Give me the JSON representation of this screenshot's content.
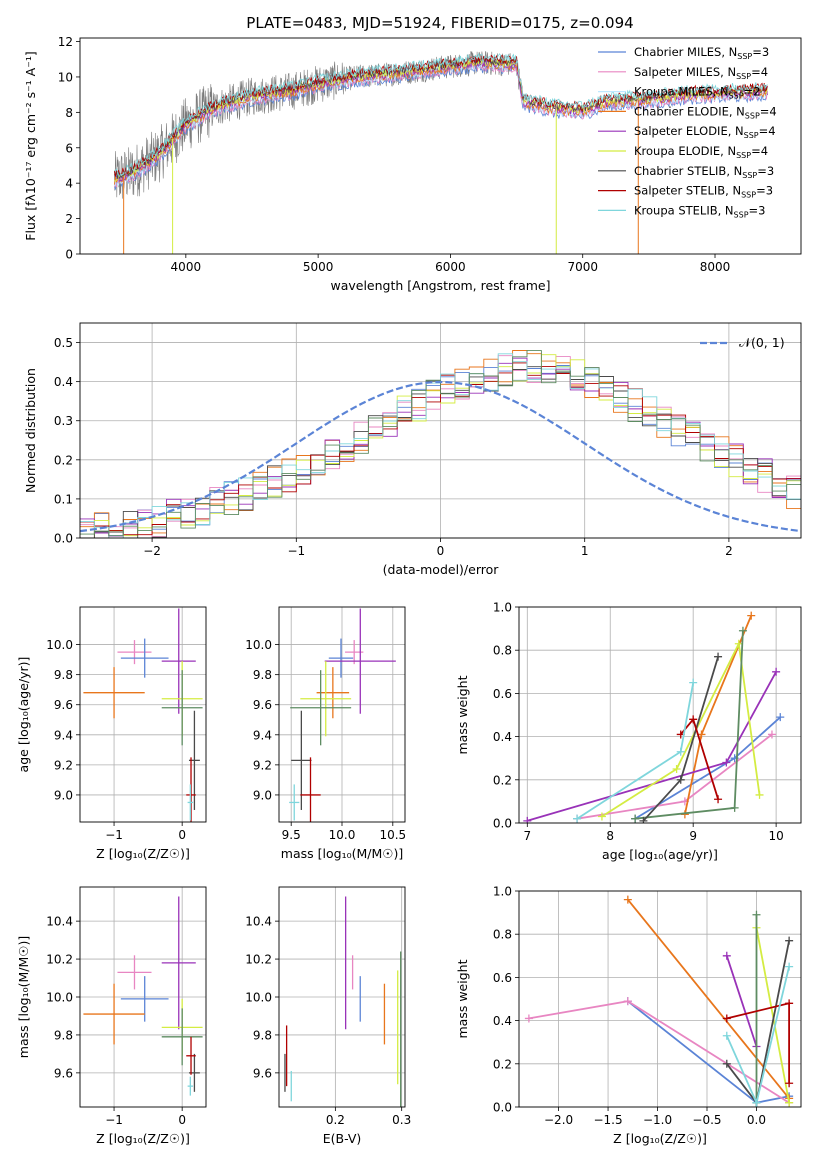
{
  "figure_title": "PLATE=0483, MJD=51924, FIBERID=0175, z=0.094",
  "colors": {
    "chabrier_miles": "#5b84d6",
    "salpeter_miles": "#e886c2",
    "kroupa_miles": "#bfe8ff",
    "chabrier_elodie": "#e8761c",
    "salpeter_elodie": "#9932b8",
    "kroupa_elodie": "#d4ec42",
    "chabrier_stelib": "#4a4a4a",
    "salpeter_stelib": "#b00000",
    "kroupa_stelib": "#7fd6dc",
    "extra_green": "#5e8c62",
    "normal_curve": "#5b84d6"
  },
  "chart_data": [
    {
      "id": "spectrum",
      "type": "line",
      "title": "PLATE=0483, MJD=51924, FIBERID=0175, z=0.094",
      "xlabel": "wavelength [Angstrom, rest frame]",
      "ylabel": "Flux [fλ10⁻¹⁷ erg cm⁻² s⁻¹ A⁻¹]",
      "xlim": [
        3200,
        8650
      ],
      "ylim": [
        0,
        12.2
      ],
      "xticks": [
        4000,
        5000,
        6000,
        7000,
        8000
      ],
      "yticks": [
        0,
        2,
        4,
        6,
        8,
        10,
        12
      ],
      "grid": false,
      "legend_position": "right",
      "legend": [
        {
          "label": "Chabrier MILES, N",
          "sub": "SSP",
          "suffix": "=3",
          "color": "#5b84d6"
        },
        {
          "label": "Salpeter MILES, N",
          "sub": "SSP",
          "suffix": "=4",
          "color": "#e886c2"
        },
        {
          "label": "Kroupa MILES, N",
          "sub": "SSP",
          "suffix": "=2",
          "color": "#bfe8ff"
        },
        {
          "label": "Chabrier ELODIE, N",
          "sub": "SSP",
          "suffix": "=4",
          "color": "#e8761c"
        },
        {
          "label": "Salpeter ELODIE, N",
          "sub": "SSP",
          "suffix": "=4",
          "color": "#9932b8"
        },
        {
          "label": "Kroupa ELODIE, N",
          "sub": "SSP",
          "suffix": "=4",
          "color": "#d4ec42"
        },
        {
          "label": "Chabrier STELIB, N",
          "sub": "SSP",
          "suffix": "=3",
          "color": "#4a4a4a"
        },
        {
          "label": "Salpeter STELIB, N",
          "sub": "SSP",
          "suffix": "=3",
          "color": "#b00000"
        },
        {
          "label": "Kroupa STELIB, N",
          "sub": "SSP",
          "suffix": "=3",
          "color": "#7fd6dc"
        }
      ],
      "continuum": {
        "x": [
          3460,
          3600,
          3800,
          4000,
          4200,
          4500,
          4800,
          5000,
          5300,
          5600,
          5900,
          6200,
          6500,
          6550,
          6800,
          7000,
          7200,
          7500,
          7800,
          8100,
          8400
        ],
        "y": [
          4.2,
          4.6,
          5.6,
          7.3,
          8.2,
          8.9,
          9.2,
          9.6,
          10.0,
          10.2,
          10.5,
          10.8,
          10.7,
          8.6,
          8.2,
          8.1,
          8.6,
          8.7,
          9.0,
          9.1,
          9.2
        ]
      }
    },
    {
      "id": "residuals",
      "type": "histogram",
      "xlabel": "(data-model)/error",
      "ylabel": "Normed distribution",
      "xlim": [
        -2.5,
        2.5
      ],
      "ylim": [
        0,
        0.55
      ],
      "xticks": [
        -2,
        -1,
        0,
        1,
        2
      ],
      "yticks": [
        0.0,
        0.1,
        0.2,
        0.3,
        0.4,
        0.5
      ],
      "grid": true,
      "legend_position": "top-right",
      "legend_label": "𝒩(0, 1)",
      "bin_width": 0.1,
      "bin_start": -2.5,
      "envelope": [
        0.02,
        0.025,
        0.03,
        0.035,
        0.04,
        0.045,
        0.055,
        0.065,
        0.075,
        0.09,
        0.1,
        0.11,
        0.13,
        0.14,
        0.16,
        0.18,
        0.2,
        0.22,
        0.24,
        0.26,
        0.28,
        0.3,
        0.32,
        0.34,
        0.36,
        0.38,
        0.4,
        0.41,
        0.42,
        0.43,
        0.44,
        0.44,
        0.44,
        0.43,
        0.42,
        0.4,
        0.38,
        0.36,
        0.34,
        0.32,
        0.3,
        0.28,
        0.26,
        0.24,
        0.22,
        0.2,
        0.18,
        0.16,
        0.14,
        0.12
      ]
    },
    {
      "id": "age_vs_z",
      "type": "errorbar",
      "xlabel": "Z [log₁₀(Z/Z☉)]",
      "ylabel": "age  [log₁₀(age/yr)]",
      "xlim": [
        -1.5,
        0.35
      ],
      "ylim": [
        8.82,
        10.25
      ],
      "xticks": [
        -1,
        0
      ],
      "yticks": [
        9.0,
        9.2,
        9.4,
        9.6,
        9.8,
        10.0
      ],
      "grid": true,
      "points": [
        {
          "x": -0.7,
          "y": 9.95,
          "xerr": 0.25,
          "yerr": 0.08,
          "color": "#e886c2"
        },
        {
          "x": -0.55,
          "y": 9.91,
          "xerr": 0.35,
          "yerr": 0.13,
          "color": "#5b84d6"
        },
        {
          "x": -1.0,
          "y": 9.68,
          "xerr": 0.45,
          "yerr": 0.17,
          "color": "#e8761c"
        },
        {
          "x": -0.05,
          "y": 9.89,
          "xerr": 0.25,
          "yerr": 0.35,
          "color": "#9932b8"
        },
        {
          "x": 0.0,
          "y": 9.64,
          "xerr": 0.3,
          "yerr": 0.25,
          "color": "#d4ec42"
        },
        {
          "x": 0.0,
          "y": 9.58,
          "xerr": 0.3,
          "yerr": 0.25,
          "color": "#5e8c62"
        },
        {
          "x": 0.18,
          "y": 9.23,
          "xerr": 0.08,
          "yerr": 0.33,
          "color": "#4a4a4a"
        },
        {
          "x": 0.13,
          "y": 9.0,
          "xerr": 0.07,
          "yerr": 0.25,
          "color": "#b00000"
        },
        {
          "x": 0.12,
          "y": 8.95,
          "xerr": 0.04,
          "yerr": 0.12,
          "color": "#7fd6dc"
        }
      ]
    },
    {
      "id": "age_vs_mass",
      "type": "errorbar",
      "xlabel": "mass [log₁₀(M/M☉)]",
      "ylabel": "",
      "xlim": [
        9.38,
        10.62
      ],
      "ylim": [
        8.82,
        10.25
      ],
      "xticks": [
        9.5,
        10.0,
        10.5
      ],
      "yticks": [
        9.0,
        9.2,
        9.4,
        9.6,
        9.8,
        10.0
      ],
      "grid": true,
      "points": [
        {
          "x": 10.12,
          "y": 9.95,
          "xerr": 0.09,
          "yerr": 0.08,
          "color": "#e886c2"
        },
        {
          "x": 9.99,
          "y": 9.91,
          "xerr": 0.12,
          "yerr": 0.13,
          "color": "#5b84d6"
        },
        {
          "x": 9.91,
          "y": 9.68,
          "xerr": 0.16,
          "yerr": 0.17,
          "color": "#e8761c"
        },
        {
          "x": 10.18,
          "y": 9.89,
          "xerr": 0.35,
          "yerr": 0.35,
          "color": "#9932b8"
        },
        {
          "x": 9.84,
          "y": 9.64,
          "xerr": 0.25,
          "yerr": 0.25,
          "color": "#d4ec42"
        },
        {
          "x": 9.79,
          "y": 9.58,
          "xerr": 0.3,
          "yerr": 0.25,
          "color": "#5e8c62"
        },
        {
          "x": 9.6,
          "y": 9.23,
          "xerr": 0.1,
          "yerr": 0.33,
          "color": "#4a4a4a"
        },
        {
          "x": 9.69,
          "y": 9.0,
          "xerr": 0.1,
          "yerr": 0.25,
          "color": "#b00000"
        },
        {
          "x": 9.53,
          "y": 8.95,
          "xerr": 0.05,
          "yerr": 0.12,
          "color": "#7fd6dc"
        }
      ]
    },
    {
      "id": "weight_vs_age",
      "type": "line",
      "xlabel": "age  [log₁₀(age/yr)]",
      "ylabel": "mass weight",
      "xlim": [
        6.9,
        10.3
      ],
      "ylim": [
        0,
        1.0
      ],
      "xticks": [
        7,
        8,
        9,
        10
      ],
      "yticks": [
        0.0,
        0.2,
        0.4,
        0.6,
        0.8,
        1.0
      ],
      "grid": true,
      "series": [
        {
          "color": "#5b84d6",
          "x": [
            8.3,
            9.5,
            10.05
          ],
          "y": [
            0.02,
            0.3,
            0.49
          ]
        },
        {
          "color": "#e886c2",
          "x": [
            7.6,
            8.9,
            9.95
          ],
          "y": [
            0.02,
            0.1,
            0.41
          ]
        },
        {
          "color": "#e8761c",
          "x": [
            8.9,
            9.1,
            9.7
          ],
          "y": [
            0.04,
            0.41,
            0.96
          ]
        },
        {
          "color": "#9932b8",
          "x": [
            7.0,
            9.4,
            10.0
          ],
          "y": [
            0.01,
            0.28,
            0.7
          ]
        },
        {
          "color": "#d4ec42",
          "x": [
            7.9,
            8.8,
            9.55,
            9.8
          ],
          "y": [
            0.03,
            0.25,
            0.83,
            0.13
          ]
        },
        {
          "color": "#5e8c62",
          "x": [
            8.3,
            9.5,
            9.6
          ],
          "y": [
            0.02,
            0.07,
            0.89
          ]
        },
        {
          "color": "#4a4a4a",
          "x": [
            8.4,
            8.85,
            9.3
          ],
          "y": [
            0.01,
            0.2,
            0.77
          ]
        },
        {
          "color": "#b00000",
          "x": [
            8.85,
            9.0,
            9.3
          ],
          "y": [
            0.41,
            0.48,
            0.11
          ]
        },
        {
          "color": "#7fd6dc",
          "x": [
            7.6,
            8.85,
            9.0
          ],
          "y": [
            0.02,
            0.33,
            0.65
          ]
        }
      ]
    },
    {
      "id": "mass_vs_z",
      "type": "errorbar",
      "xlabel": "Z [log₁₀(Z/Z☉)]",
      "ylabel": "mass [log₁₀(M/M☉)]",
      "xlim": [
        -1.5,
        0.35
      ],
      "ylim": [
        9.42,
        10.58
      ],
      "xticks": [
        -1,
        0
      ],
      "yticks": [
        9.6,
        9.8,
        10.0,
        10.2,
        10.4
      ],
      "grid": true,
      "points": [
        {
          "x": -0.7,
          "y": 10.13,
          "xerr": 0.25,
          "yerr": 0.09,
          "color": "#e886c2"
        },
        {
          "x": -0.55,
          "y": 9.99,
          "xerr": 0.35,
          "yerr": 0.12,
          "color": "#5b84d6"
        },
        {
          "x": -1.0,
          "y": 9.91,
          "xerr": 0.45,
          "yerr": 0.16,
          "color": "#e8761c"
        },
        {
          "x": -0.05,
          "y": 10.18,
          "xerr": 0.25,
          "yerr": 0.35,
          "color": "#9932b8"
        },
        {
          "x": 0.0,
          "y": 9.84,
          "xerr": 0.3,
          "yerr": 0.15,
          "color": "#d4ec42"
        },
        {
          "x": 0.0,
          "y": 9.79,
          "xerr": 0.3,
          "yerr": 0.15,
          "color": "#5e8c62"
        },
        {
          "x": 0.18,
          "y": 9.6,
          "xerr": 0.08,
          "yerr": 0.1,
          "color": "#4a4a4a"
        },
        {
          "x": 0.13,
          "y": 9.69,
          "xerr": 0.07,
          "yerr": 0.1,
          "color": "#b00000"
        },
        {
          "x": 0.12,
          "y": 9.53,
          "xerr": 0.04,
          "yerr": 0.05,
          "color": "#7fd6dc"
        }
      ]
    },
    {
      "id": "mass_vs_ebv",
      "type": "errorbar",
      "xlabel": "E(B-V)",
      "ylabel": "",
      "xlim": [
        0.115,
        0.305
      ],
      "ylim": [
        9.42,
        10.58
      ],
      "xticks": [
        0.2,
        0.3
      ],
      "yticks": [
        9.6,
        9.8,
        10.0,
        10.2,
        10.4
      ],
      "grid": true,
      "points": [
        {
          "x": 0.2155,
          "y": 10.18,
          "xerr": 0,
          "yerr": 0.35,
          "color": "#9932b8"
        },
        {
          "x": 0.226,
          "y": 10.13,
          "xerr": 0,
          "yerr": 0.09,
          "color": "#e886c2"
        },
        {
          "x": 0.2375,
          "y": 9.99,
          "xerr": 0,
          "yerr": 0.12,
          "color": "#5b84d6"
        },
        {
          "x": 0.274,
          "y": 9.91,
          "xerr": 0,
          "yerr": 0.16,
          "color": "#e8761c"
        },
        {
          "x": 0.294,
          "y": 9.84,
          "xerr": 0,
          "yerr": 0.3,
          "color": "#d4ec42"
        },
        {
          "x": 0.2985,
          "y": 9.79,
          "xerr": 0,
          "yerr": 0.45,
          "color": "#5e8c62"
        },
        {
          "x": 0.1265,
          "y": 9.69,
          "xerr": 0,
          "yerr": 0.16,
          "color": "#b00000"
        },
        {
          "x": 0.124,
          "y": 9.6,
          "xerr": 0,
          "yerr": 0.1,
          "color": "#4a4a4a"
        },
        {
          "x": 0.1335,
          "y": 9.53,
          "xerr": 0,
          "yerr": 0.08,
          "color": "#7fd6dc"
        }
      ]
    },
    {
      "id": "weight_vs_z",
      "type": "line",
      "xlabel": "Z [log₁₀(Z/Z☉)]",
      "ylabel": "mass weight",
      "xlim": [
        -2.4,
        0.45
      ],
      "ylim": [
        0,
        1.0
      ],
      "xticks": [
        -2.0,
        -1.5,
        -1.0,
        -0.5,
        0.0
      ],
      "yticks": [
        0.0,
        0.2,
        0.4,
        0.6,
        0.8,
        1.0
      ],
      "grid": true,
      "series": [
        {
          "color": "#5b84d6",
          "x": [
            -1.3,
            0.0,
            0.33
          ],
          "y": [
            0.49,
            0.02,
            0.05
          ]
        },
        {
          "color": "#e886c2",
          "x": [
            -2.3,
            -1.3,
            0.33
          ],
          "y": [
            0.41,
            0.49,
            0.02
          ]
        },
        {
          "color": "#e8761c",
          "x": [
            -1.3,
            0.33
          ],
          "y": [
            0.96,
            0.04
          ]
        },
        {
          "color": "#9932b8",
          "x": [
            -0.3,
            0.0
          ],
          "y": [
            0.7,
            0.28
          ]
        },
        {
          "color": "#d4ec42",
          "x": [
            0.0,
            0.33
          ],
          "y": [
            0.83,
            0.02
          ]
        },
        {
          "color": "#5e8c62",
          "x": [
            0.0,
            0.0
          ],
          "y": [
            0.89,
            0.02
          ]
        },
        {
          "color": "#4a4a4a",
          "x": [
            -0.3,
            0.0,
            0.33
          ],
          "y": [
            0.2,
            0.02,
            0.77
          ]
        },
        {
          "color": "#b00000",
          "x": [
            -0.3,
            0.33,
            0.33
          ],
          "y": [
            0.41,
            0.48,
            0.11
          ]
        },
        {
          "color": "#7fd6dc",
          "x": [
            -0.3,
            0.0,
            0.33
          ],
          "y": [
            0.33,
            0.02,
            0.65
          ]
        }
      ]
    }
  ]
}
